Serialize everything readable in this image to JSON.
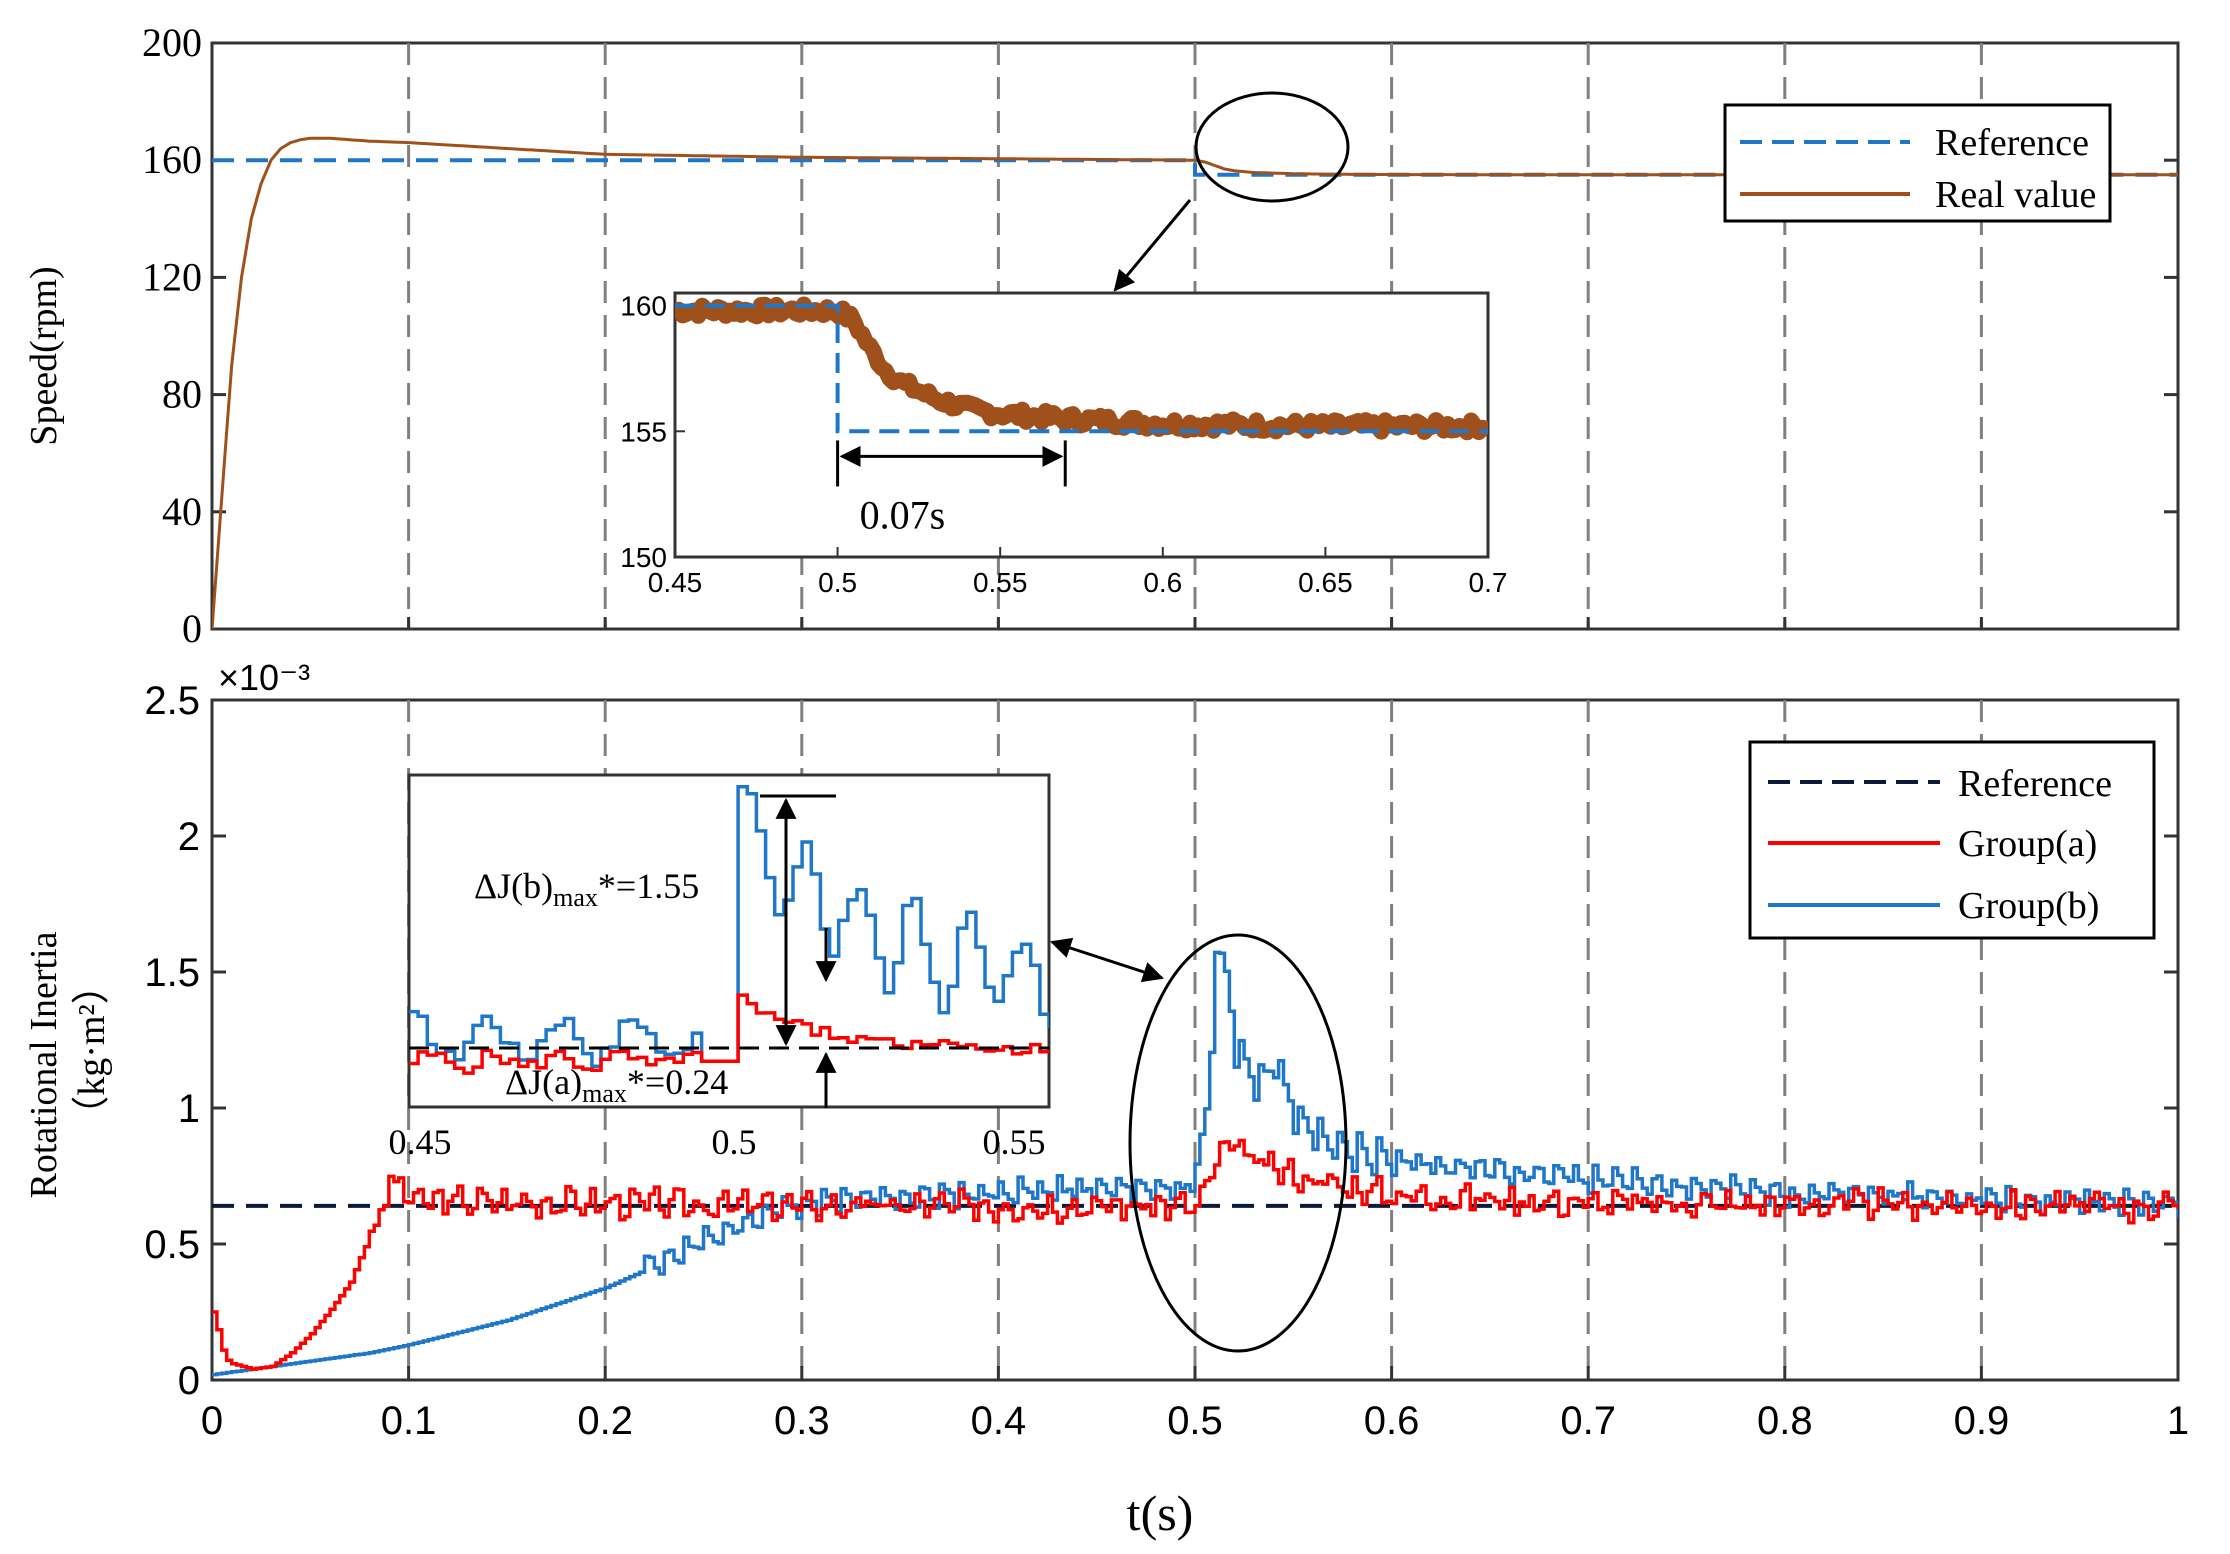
{
  "colors": {
    "speed_reference": "#1f77c9",
    "speed_real": "#a0501a",
    "inertia_reference": "#0b1a3a",
    "group_a": "#ff0000",
    "group_b": "#1f77c9",
    "grid": "#808080"
  },
  "chart_data": [
    {
      "id": "speed",
      "type": "line",
      "title": "",
      "xlabel": "",
      "ylabel": "Speed(rpm)",
      "xlim": [
        0,
        1
      ],
      "ylim": [
        0,
        200
      ],
      "yticks": [
        0,
        40,
        80,
        120,
        160,
        200
      ],
      "ytick_labels": [
        "0",
        "40",
        "80",
        "120",
        "160",
        "200"
      ],
      "grid": "vertical dashed at x = 0.1 … 0.9",
      "legend": {
        "position": "top-right",
        "entries": [
          "Reference",
          "Real value"
        ]
      },
      "series": [
        {
          "name": "Reference",
          "style": "dashed",
          "x": [
            0,
            0.5,
            0.5,
            1
          ],
          "y": [
            160,
            160,
            155,
            155
          ]
        },
        {
          "name": "Real value",
          "style": "solid",
          "x": [
            0,
            0.005,
            0.01,
            0.015,
            0.02,
            0.025,
            0.03,
            0.035,
            0.04,
            0.045,
            0.05,
            0.06,
            0.07,
            0.08,
            0.1,
            0.15,
            0.2,
            0.3,
            0.4,
            0.5,
            0.505,
            0.51,
            0.515,
            0.52,
            0.53,
            0.55,
            0.57,
            0.6,
            0.7,
            0.8,
            1.0
          ],
          "y": [
            0,
            45,
            90,
            120,
            140,
            152,
            160,
            164,
            166,
            167,
            167.5,
            167.5,
            167,
            166.5,
            166,
            164,
            162,
            161,
            160.5,
            160,
            159.4,
            158.2,
            157.0,
            156.4,
            155.8,
            155.4,
            155.2,
            155.1,
            155,
            155,
            155
          ]
        }
      ],
      "annotations": [
        "ellipse around step change at t = 0.5 s with arrow to inset"
      ]
    },
    {
      "id": "speed_inset",
      "type": "line",
      "xlim": [
        0.45,
        0.7
      ],
      "ylim": [
        150,
        160.5
      ],
      "xticks": [
        0.45,
        0.5,
        0.55,
        0.6,
        0.65,
        0.7
      ],
      "xtick_labels": [
        "0.45",
        "0.5",
        "0.55",
        "0.6",
        "0.65",
        "0.7"
      ],
      "yticks": [
        150,
        155,
        160
      ],
      "ytick_labels": [
        "150",
        "155",
        "160"
      ],
      "series": [
        {
          "name": "Reference",
          "style": "dashed",
          "x": [
            0.45,
            0.5,
            0.5,
            0.7
          ],
          "y": [
            160,
            160,
            155,
            155
          ]
        },
        {
          "name": "Real value",
          "style": "thick band (ripple ±0.4)",
          "x": [
            0.45,
            0.5,
            0.505,
            0.51,
            0.515,
            0.52,
            0.53,
            0.54,
            0.55,
            0.57,
            0.6,
            0.65,
            0.7
          ],
          "y": [
            159.8,
            159.8,
            159.4,
            158.3,
            157.4,
            156.9,
            156.3,
            155.9,
            155.7,
            155.5,
            155.3,
            155.2,
            155.2
          ]
        }
      ],
      "annotation": {
        "text": "0.07s",
        "from_x": 0.5,
        "to_x": 0.57
      }
    },
    {
      "id": "inertia",
      "type": "line",
      "title": "",
      "xlabel": "t(s)",
      "ylabel_line1": "Rotational Inertia",
      "ylabel_line2": "（kg·m²）",
      "y_multiplier": "×10⁻³",
      "xlim": [
        0,
        1
      ],
      "ylim": [
        0,
        2.5
      ],
      "xticks": [
        0,
        0.1,
        0.2,
        0.3,
        0.4,
        0.5,
        0.6,
        0.7,
        0.8,
        0.9,
        1
      ],
      "xtick_labels": [
        "0",
        "0.1",
        "0.2",
        "0.3",
        "0.4",
        "0.5",
        "0.6",
        "0.7",
        "0.8",
        "0.9",
        "1"
      ],
      "yticks": [
        0,
        0.5,
        1,
        1.5,
        2,
        2.5
      ],
      "ytick_labels": [
        "0",
        "0.5",
        "1",
        "1.5",
        "2",
        "2.5"
      ],
      "legend": {
        "position": "top-right",
        "entries": [
          "Reference",
          "Group(a)",
          "Group(b)"
        ]
      },
      "series": [
        {
          "name": "Reference",
          "style": "dashed",
          "x": [
            0,
            1
          ],
          "y": [
            0.64,
            0.64
          ]
        },
        {
          "name": "Group(a)",
          "style": "solid",
          "x": [
            0,
            0.002,
            0.006,
            0.01,
            0.02,
            0.03,
            0.04,
            0.05,
            0.06,
            0.07,
            0.075,
            0.08,
            0.085,
            0.09,
            0.095,
            0.1,
            0.2,
            0.3,
            0.4,
            0.5,
            0.505,
            0.51,
            0.52,
            0.53,
            0.55,
            0.57,
            0.6,
            0.7,
            1.0
          ],
          "y": [
            0.25,
            0.2,
            0.08,
            0.06,
            0.04,
            0.05,
            0.1,
            0.17,
            0.26,
            0.36,
            0.45,
            0.53,
            0.62,
            0.72,
            0.72,
            0.66,
            0.65,
            0.64,
            0.64,
            0.64,
            0.7,
            0.82,
            0.86,
            0.8,
            0.75,
            0.72,
            0.68,
            0.65,
            0.64
          ]
        },
        {
          "name": "Group(b)",
          "style": "solid",
          "x": [
            0,
            0.02,
            0.05,
            0.08,
            0.1,
            0.15,
            0.2,
            0.25,
            0.28,
            0.3,
            0.4,
            0.5,
            0.505,
            0.51,
            0.515,
            0.52,
            0.53,
            0.54,
            0.55,
            0.56,
            0.57,
            0.6,
            0.7,
            0.8,
            1.0
          ],
          "y": [
            0.02,
            0.04,
            0.07,
            0.1,
            0.13,
            0.22,
            0.34,
            0.5,
            0.6,
            0.64,
            0.68,
            0.7,
            1.0,
            1.5,
            1.52,
            1.25,
            1.1,
            1.2,
            1.0,
            0.92,
            0.88,
            0.82,
            0.75,
            0.7,
            0.66
          ]
        }
      ],
      "annotations": [
        "ellipse around transient near t = 0.5 s with arrow to inset"
      ]
    },
    {
      "id": "inertia_inset",
      "type": "line",
      "xlim": [
        0.45,
        0.555
      ],
      "ylim": [
        0.48,
        1.64
      ],
      "xtick_labels": [
        "0.45",
        "0.5",
        "0.55"
      ],
      "annotations": [
        {
          "label": "ΔJ(b)",
          "sub": "max",
          "value": "*=1.55"
        },
        {
          "label": "ΔJ(a)",
          "sub": "max",
          "value": "*=0.24"
        }
      ]
    }
  ]
}
